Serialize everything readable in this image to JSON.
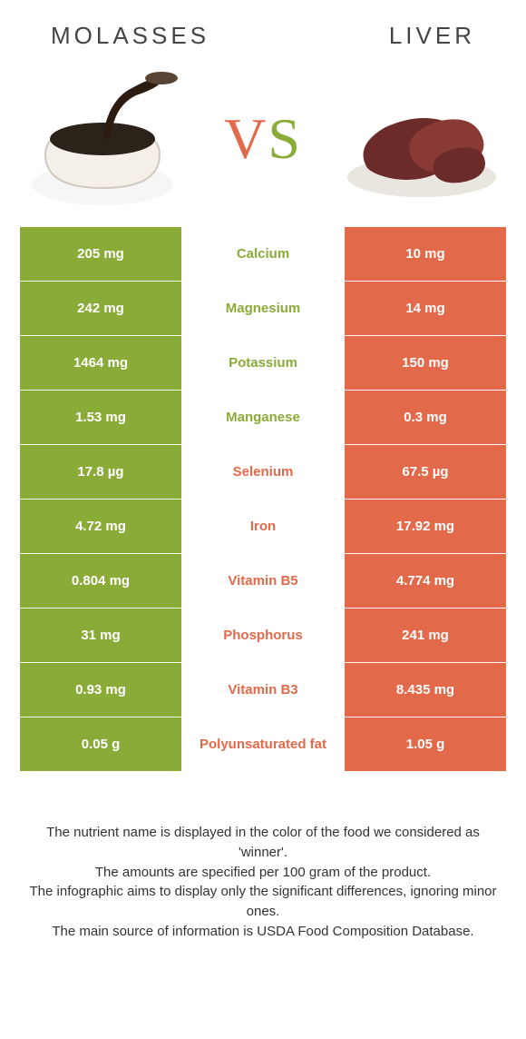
{
  "colors": {
    "left_bg": "#8aab38",
    "right_bg": "#e26a4a",
    "left_text": "#8aab38",
    "right_text": "#e26a4a",
    "title_text": "#444444"
  },
  "header": {
    "left_title": "MOLASSES",
    "right_title": "LIVER",
    "vs_v": "V",
    "vs_s": "S"
  },
  "rows": [
    {
      "left": "205 mg",
      "label": "Calcium",
      "right": "10 mg",
      "winner": "left"
    },
    {
      "left": "242 mg",
      "label": "Magnesium",
      "right": "14 mg",
      "winner": "left"
    },
    {
      "left": "1464 mg",
      "label": "Potassium",
      "right": "150 mg",
      "winner": "left"
    },
    {
      "left": "1.53 mg",
      "label": "Manganese",
      "right": "0.3 mg",
      "winner": "left"
    },
    {
      "left": "17.8 µg",
      "label": "Selenium",
      "right": "67.5 µg",
      "winner": "right"
    },
    {
      "left": "4.72 mg",
      "label": "Iron",
      "right": "17.92 mg",
      "winner": "right"
    },
    {
      "left": "0.804 mg",
      "label": "Vitamin B5",
      "right": "4.774 mg",
      "winner": "right"
    },
    {
      "left": "31 mg",
      "label": "Phosphorus",
      "right": "241 mg",
      "winner": "right"
    },
    {
      "left": "0.93 mg",
      "label": "Vitamin B3",
      "right": "8.435 mg",
      "winner": "right"
    },
    {
      "left": "0.05 g",
      "label": "Polyunsaturated fat",
      "right": "1.05 g",
      "winner": "right"
    }
  ],
  "footnote": {
    "l1": "The nutrient name is displayed in the color of the food we considered as 'winner'.",
    "l2": "The amounts are specified per 100 gram of the product.",
    "l3": "The infographic aims to display only the significant differences, ignoring minor ones.",
    "l4": "The main source of information is USDA Food Composition Database."
  }
}
